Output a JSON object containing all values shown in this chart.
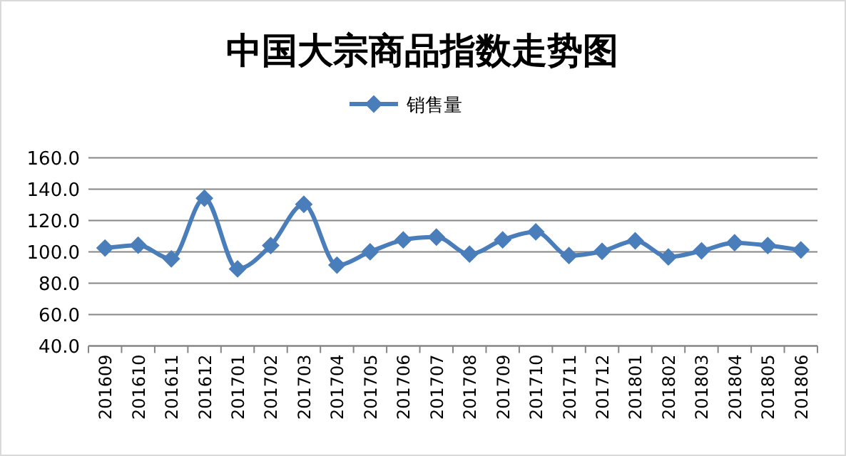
{
  "chart_data": {
    "type": "line",
    "title": "中国大宗商品指数走势图",
    "categories": [
      "201609",
      "201610",
      "201611",
      "201612",
      "201701",
      "201702",
      "201703",
      "201704",
      "201705",
      "201706",
      "201707",
      "201708",
      "201709",
      "201710",
      "201711",
      "201712",
      "201801",
      "201802",
      "201803",
      "201804",
      "201805",
      "201806"
    ],
    "series": [
      {
        "name": "销售量",
        "color": "#4a7ebb",
        "values": [
          102.4,
          104.2,
          95.5,
          134.2,
          89.1,
          104,
          130.3,
          91.5,
          100,
          107.6,
          109.4,
          98.5,
          107.6,
          112.7,
          97.6,
          100.3,
          107,
          96.7,
          100.6,
          105.8,
          104,
          101.2
        ]
      }
    ],
    "ylim": [
      40,
      160
    ],
    "yticks": [
      {
        "value": 40,
        "label": "40.0"
      },
      {
        "value": 60,
        "label": "60.0"
      },
      {
        "value": 80,
        "label": "80.0"
      },
      {
        "value": 100,
        "label": "100.0"
      },
      {
        "value": 120,
        "label": "120.0"
      },
      {
        "value": 140,
        "label": "140.0"
      },
      {
        "value": 160,
        "label": "160.0"
      }
    ],
    "grid": "y",
    "legend": "top",
    "marker": "diamond",
    "line_style": "solid"
  }
}
